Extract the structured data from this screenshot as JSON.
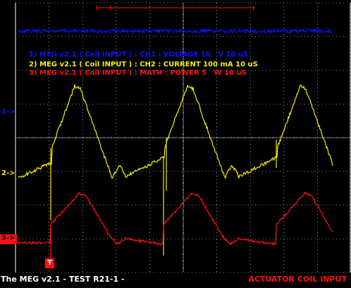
{
  "legend": {
    "ch1": "1) MEG v2.1 ( Coil INPUT ) : CH1 : VOLTAGE 10   V 10 uS",
    "ch2": "2) MEG v2.1 ( Coil INPUT ) : CH2 : CURRENT 100 mA 10 uS",
    "ch3": "3) MEG v2.1 ( Coil INPUT ) : MATH : POWER 5   W 10 uS"
  },
  "markers": {
    "ch1": "1->",
    "ch2": "2->",
    "ch3": "3->",
    "trigger": "T"
  },
  "footer": {
    "left": "The MEG v2.1 - TEST R21-1 -",
    "right": "ACTUATOR COIL INPUT"
  },
  "colors": {
    "background": "#000000",
    "grid": "#ffffff",
    "ch1": "#1010ff",
    "ch2": "#f0f000",
    "ch3": "#ff1010"
  }
}
